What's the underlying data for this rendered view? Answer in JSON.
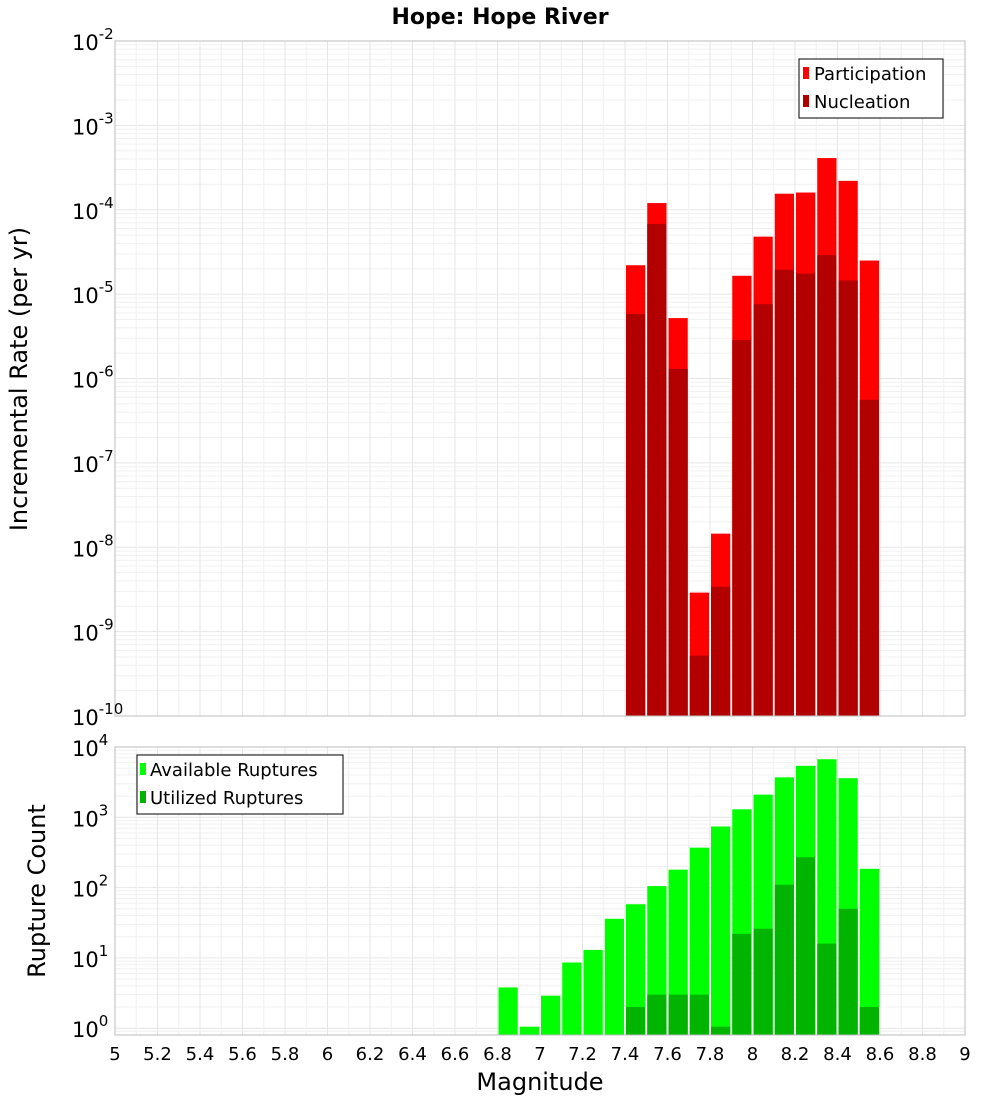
{
  "chart_data": [
    {
      "type": "bar",
      "title": "Hope: Hope River",
      "xlabel": "",
      "ylabel": "Incremental Rate (per yr)",
      "yscale": "log",
      "ylim": [
        1e-10,
        0.01
      ],
      "xlim": [
        5,
        9
      ],
      "legend_position": "top-right",
      "y_tick_mantissa": "10",
      "y_tick_exponents": [
        "-10",
        "-9",
        "-8",
        "-7",
        "-6",
        "-5",
        "-4",
        "-3",
        "-2"
      ],
      "series": [
        {
          "name": "Participation",
          "color": "#ff0000",
          "x": [
            7.45,
            7.55,
            7.65,
            7.75,
            7.85,
            7.95,
            8.05,
            8.15,
            8.25,
            8.35,
            8.45,
            8.55
          ],
          "values": [
            2.2e-05,
            0.00012,
            5.2e-06,
            2.9e-09,
            1.45e-08,
            1.65e-05,
            4.8e-05,
            0.000155,
            0.00016,
            0.00041,
            0.00022,
            2.5e-05
          ]
        },
        {
          "name": "Nucleation",
          "color": "#b20000",
          "x": [
            7.45,
            7.55,
            7.65,
            7.75,
            7.85,
            7.95,
            8.05,
            8.15,
            8.25,
            8.35,
            8.45,
            8.55
          ],
          "values": [
            5.8e-06,
            6.8e-05,
            1.3e-06,
            5.2e-10,
            3.4e-09,
            2.85e-06,
            7.6e-06,
            1.95e-05,
            1.75e-05,
            2.9e-05,
            1.45e-05,
            5.6e-07
          ]
        }
      ]
    },
    {
      "type": "bar",
      "title": "",
      "xlabel": "Magnitude",
      "ylabel": "Rupture Count",
      "yscale": "log",
      "ylim": [
        0.8,
        10000.0
      ],
      "xlim": [
        5,
        9
      ],
      "legend_position": "top-left",
      "x_ticks": [
        "5",
        "5.2",
        "5.4",
        "5.6",
        "5.8",
        "6",
        "6.2",
        "6.4",
        "6.6",
        "6.8",
        "7",
        "7.2",
        "7.4",
        "7.6",
        "7.8",
        "8",
        "8.2",
        "8.4",
        "8.6",
        "8.8",
        "9"
      ],
      "y_tick_mantissa": "10",
      "y_tick_exponents": [
        "0",
        "1",
        "2",
        "3",
        "4"
      ],
      "series": [
        {
          "name": "Available Ruptures",
          "color": "#00ff00",
          "x": [
            6.85,
            6.95,
            7.05,
            7.15,
            7.25,
            7.35,
            7.45,
            7.55,
            7.65,
            7.75,
            7.85,
            7.95,
            8.05,
            8.15,
            8.25,
            8.35,
            8.45,
            8.55
          ],
          "values": [
            3.8,
            1.05,
            2.9,
            8.6,
            13,
            36,
            58,
            105,
            180,
            370,
            740,
            1300,
            2100,
            3700,
            5400,
            6700,
            3600,
            185
          ]
        },
        {
          "name": "Utilized Ruptures",
          "color": "#00b400",
          "x": [
            7.45,
            7.55,
            7.65,
            7.75,
            7.85,
            7.95,
            8.05,
            8.15,
            8.25,
            8.35,
            8.45,
            8.55
          ],
          "values": [
            2,
            3,
            3,
            3,
            1.05,
            22,
            26,
            110,
            270,
            16,
            50,
            2
          ]
        }
      ]
    }
  ]
}
